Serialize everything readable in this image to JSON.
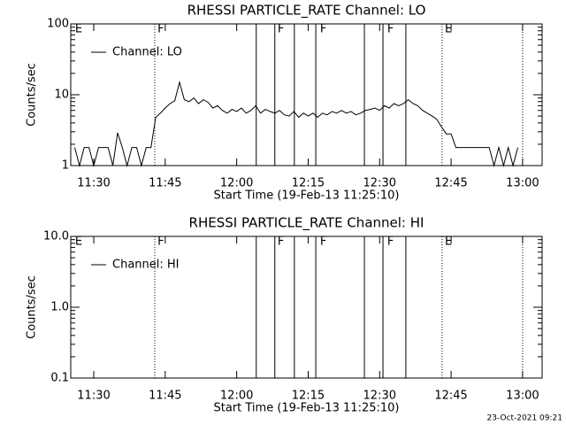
{
  "chart_data": [
    {
      "type": "line",
      "title": "RHESSI PARTICLE_RATE Channel: LO",
      "xlabel": "Start Time (19-Feb-13 11:25:10)",
      "ylabel": "Counts/sec",
      "log_y": true,
      "xlim": [
        685.17,
        784.1
      ],
      "ylim": [
        1,
        100
      ],
      "xticks": [
        {
          "value": 690,
          "label": "11:30"
        },
        {
          "value": 705,
          "label": "11:45"
        },
        {
          "value": 720,
          "label": "12:00"
        },
        {
          "value": 735,
          "label": "12:15"
        },
        {
          "value": 750,
          "label": "12:30"
        },
        {
          "value": 765,
          "label": "12:45"
        },
        {
          "value": 780,
          "label": "13:00"
        }
      ],
      "yticks": [
        1,
        10,
        100
      ],
      "legend": "upper left",
      "markers": [
        {
          "x": 702.8,
          "style": "dotted"
        },
        {
          "x": 724.1,
          "style": "solid"
        },
        {
          "x": 728.0,
          "style": "solid"
        },
        {
          "x": 732.1,
          "style": "solid"
        },
        {
          "x": 736.6,
          "style": "solid"
        },
        {
          "x": 746.8,
          "style": "solid"
        },
        {
          "x": 750.7,
          "style": "solid"
        },
        {
          "x": 755.5,
          "style": "solid"
        },
        {
          "x": 763.1,
          "style": "dotted"
        },
        {
          "x": 780.0,
          "style": "dotted"
        }
      ],
      "annotations": [
        {
          "text": "E",
          "x": 685.9
        },
        {
          "text": "F",
          "x": 703.2
        },
        {
          "text": "F",
          "x": 728.4
        },
        {
          "text": "F",
          "x": 737.3
        },
        {
          "text": "F",
          "x": 751.4
        },
        {
          "text": "E",
          "x": 763.5
        }
      ],
      "x": [
        686,
        687,
        688,
        689,
        690,
        691,
        692,
        693,
        694,
        695,
        696,
        697,
        698,
        699,
        700,
        701,
        702,
        703,
        704,
        705,
        706,
        707,
        708,
        709,
        710,
        711,
        712,
        713,
        714,
        715,
        716,
        717,
        718,
        719,
        720,
        721,
        722,
        723,
        724,
        725,
        726,
        727,
        728,
        729,
        730,
        731,
        732,
        733,
        734,
        735,
        736,
        737,
        738,
        739,
        740,
        741,
        742,
        743,
        744,
        745,
        746,
        747,
        748,
        749,
        750,
        751,
        752,
        753,
        754,
        755,
        756,
        757,
        758,
        759,
        760,
        761,
        762,
        763,
        764,
        765,
        766,
        767,
        768,
        769,
        770,
        771,
        772,
        773,
        774,
        775,
        776,
        777,
        778,
        779
      ],
      "series": [
        {
          "name": "Channel: LO",
          "color": "#000000",
          "values": [
            1.8,
            1,
            1.8,
            1.8,
            1,
            1.8,
            1.8,
            1.8,
            1,
            2.9,
            1.8,
            1,
            1.8,
            1.8,
            1,
            1.8,
            1.8,
            4.8,
            5.5,
            6.5,
            7.5,
            8.2,
            15,
            8.5,
            8,
            9,
            7.5,
            8.5,
            7.8,
            6.5,
            7,
            6,
            5.5,
            6.2,
            5.8,
            6.5,
            5.5,
            6,
            7,
            5.5,
            6.2,
            5.8,
            5.5,
            6,
            5.2,
            5,
            5.8,
            4.8,
            5.5,
            5,
            5.5,
            4.8,
            5.5,
            5.2,
            5.8,
            5.5,
            6,
            5.5,
            5.8,
            5.2,
            5.5,
            6,
            6.2,
            6.5,
            6,
            7,
            6.5,
            7.5,
            7,
            7.5,
            8.5,
            7.5,
            7,
            6,
            5.5,
            5,
            4.5,
            3.5,
            2.8,
            2.8,
            1.8,
            1.8,
            1.8,
            1.8,
            1.8,
            1.8,
            1.8,
            1.8,
            1,
            1.8,
            1,
            1.8,
            1,
            1.8
          ]
        }
      ]
    },
    {
      "type": "line",
      "title": "RHESSI PARTICLE_RATE Channel: HI",
      "xlabel": "Start Time (19-Feb-13 11:25:10)",
      "ylabel": "Counts/sec",
      "log_y": true,
      "xlim": [
        685.17,
        784.1
      ],
      "ylim": [
        0.1,
        10
      ],
      "xticks": [
        {
          "value": 690,
          "label": "11:30"
        },
        {
          "value": 705,
          "label": "11:45"
        },
        {
          "value": 720,
          "label": "12:00"
        },
        {
          "value": 735,
          "label": "12:15"
        },
        {
          "value": 750,
          "label": "12:30"
        },
        {
          "value": 765,
          "label": "12:45"
        },
        {
          "value": 780,
          "label": "13:00"
        }
      ],
      "yticks": [
        0.1,
        {
          "value": 1,
          "label": "1.0"
        },
        {
          "value": 10,
          "label": "10.0"
        }
      ],
      "legend": "upper left",
      "markers": [
        {
          "x": 702.8,
          "style": "dotted"
        },
        {
          "x": 724.1,
          "style": "solid"
        },
        {
          "x": 728.0,
          "style": "solid"
        },
        {
          "x": 732.1,
          "style": "solid"
        },
        {
          "x": 736.6,
          "style": "solid"
        },
        {
          "x": 746.8,
          "style": "solid"
        },
        {
          "x": 750.7,
          "style": "solid"
        },
        {
          "x": 755.5,
          "style": "solid"
        },
        {
          "x": 763.1,
          "style": "dotted"
        },
        {
          "x": 780.0,
          "style": "dotted"
        }
      ],
      "annotations": [
        {
          "text": "E",
          "x": 685.9
        },
        {
          "text": "F",
          "x": 703.2
        },
        {
          "text": "F",
          "x": 728.4
        },
        {
          "text": "F",
          "x": 737.3
        },
        {
          "text": "F",
          "x": 751.4
        },
        {
          "text": "E",
          "x": 763.5
        }
      ],
      "x": [],
      "series": [
        {
          "name": "Channel: HI",
          "color": "#000000",
          "values": []
        }
      ]
    }
  ],
  "footer": "23-Oct-2021 09:21"
}
